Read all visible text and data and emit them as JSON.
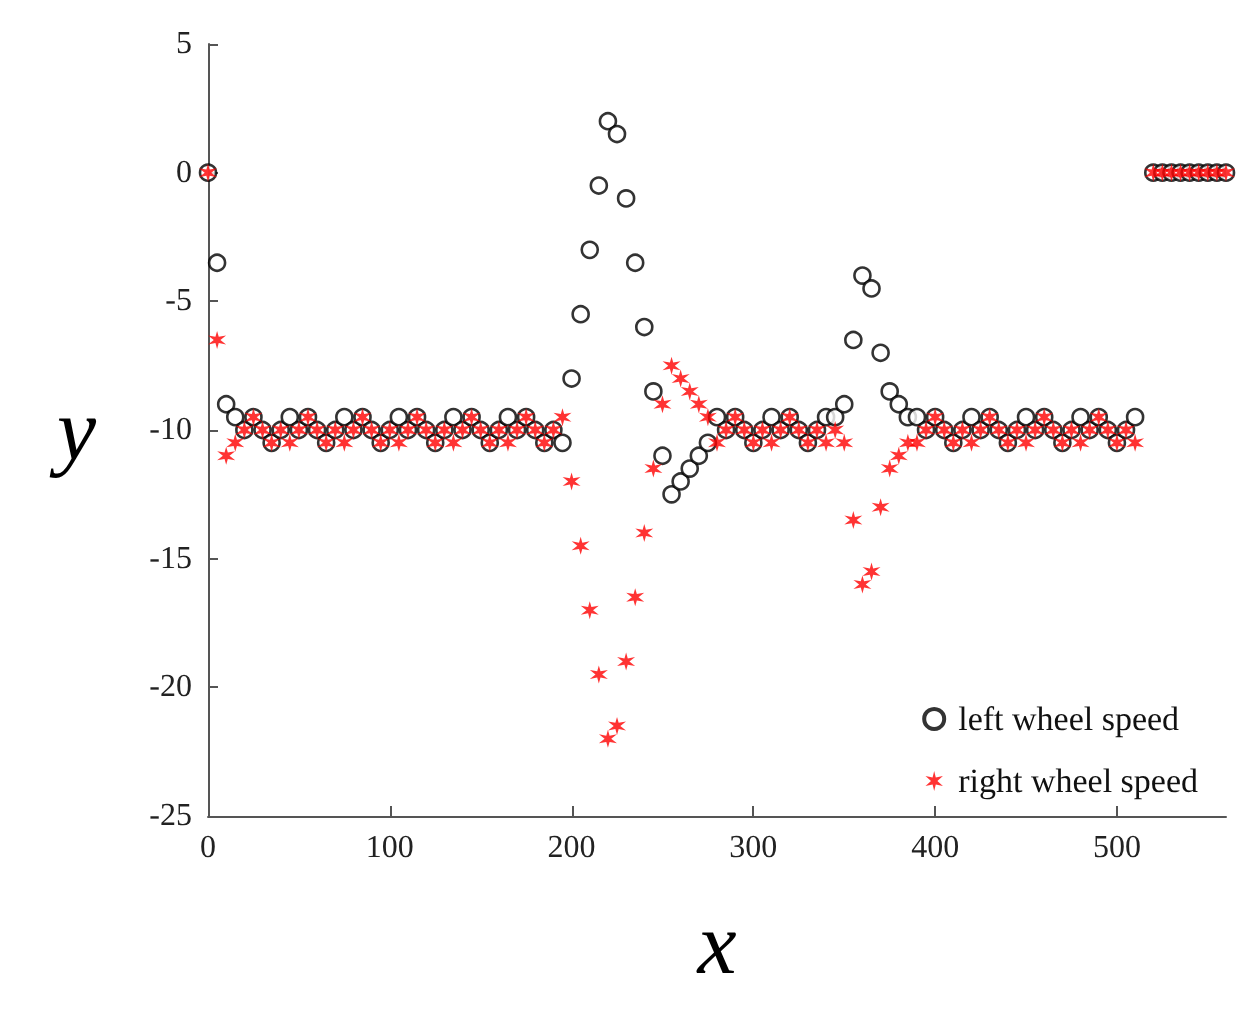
{
  "chart_data": {
    "type": "scatter",
    "xlabel": "x",
    "ylabel": "y",
    "xlim": [
      0,
      560
    ],
    "ylim": [
      -25,
      5
    ],
    "xticks": [
      0,
      100,
      200,
      300,
      400,
      500
    ],
    "yticks": [
      -25,
      -20,
      -15,
      -10,
      -5,
      0,
      5
    ],
    "grid": false,
    "legend": "bottom right",
    "x": [
      0,
      5,
      10,
      15,
      20,
      25,
      30,
      35,
      40,
      45,
      50,
      55,
      60,
      65,
      70,
      75,
      80,
      85,
      90,
      95,
      100,
      105,
      110,
      115,
      120,
      125,
      130,
      135,
      140,
      145,
      150,
      155,
      160,
      165,
      170,
      175,
      180,
      185,
      190,
      195,
      200,
      205,
      210,
      215,
      220,
      225,
      230,
      235,
      240,
      245,
      250,
      255,
      260,
      265,
      270,
      275,
      280,
      285,
      290,
      295,
      300,
      305,
      310,
      315,
      320,
      325,
      330,
      335,
      340,
      345,
      350,
      355,
      360,
      365,
      370,
      375,
      380,
      385,
      390,
      395,
      400,
      405,
      410,
      415,
      420,
      425,
      430,
      435,
      440,
      445,
      450,
      455,
      460,
      465,
      470,
      475,
      480,
      485,
      490,
      495,
      500,
      505,
      510,
      515,
      520,
      525,
      530,
      535,
      540,
      545,
      550,
      555,
      560
    ],
    "series": [
      {
        "name": "left wheel speed",
        "color": "#000000",
        "marker": "circle",
        "values": [
          0,
          -3.5,
          -9,
          -9.5,
          -10,
          -9.5,
          -10,
          -10.5,
          -10,
          -9.5,
          -10,
          -9.5,
          -10,
          -10.5,
          -10,
          -9.5,
          -10,
          -9.5,
          -10,
          -10.5,
          -10,
          -9.5,
          -10,
          -9.5,
          -10,
          -10.5,
          -10,
          -9.5,
          -10,
          -9.5,
          -10,
          -10.5,
          -10,
          -9.5,
          -10,
          -9.5,
          -10,
          -10.5,
          -10,
          -10.5,
          -8,
          -5.5,
          -3,
          -0.5,
          2,
          1.5,
          -1,
          -3.5,
          -6,
          -8.5,
          -11,
          -12.5,
          -12,
          -11.5,
          -11,
          -10.5,
          -9.5,
          -10,
          -9.5,
          -10,
          -10.5,
          -10,
          -9.5,
          -10,
          -9.5,
          -10,
          -10.5,
          -10,
          -9.5,
          -9.5,
          -9,
          -6.5,
          -4,
          -4.5,
          -7,
          -8.5,
          -9,
          -9.5,
          -9.5,
          -10,
          -9.5,
          -10,
          -10.5,
          -10,
          -9.5,
          -10,
          -9.5,
          -10,
          -10.5,
          -10,
          -9.5,
          -10,
          -9.5,
          -10,
          -10.5,
          -10,
          -9.5,
          -10,
          -9.5,
          -10,
          -10.5,
          -10,
          -9.5,
          null,
          0,
          0,
          0,
          0,
          0,
          0,
          0,
          0,
          0
        ]
      },
      {
        "name": "right wheel speed",
        "color": "#ff0000",
        "marker": "cross",
        "values": [
          0,
          -6.5,
          -11,
          -10.5,
          -10,
          -9.5,
          -10,
          -10.5,
          -10,
          -10.5,
          -10,
          -9.5,
          -10,
          -10.5,
          -10,
          -10.5,
          -10,
          -9.5,
          -10,
          -10.5,
          -10,
          -10.5,
          -10,
          -9.5,
          -10,
          -10.5,
          -10,
          -10.5,
          -10,
          -9.5,
          -10,
          -10.5,
          -10,
          -10.5,
          -10,
          -9.5,
          -10,
          -10.5,
          -10,
          -9.5,
          -12,
          -14.5,
          -17,
          -19.5,
          -22,
          -21.5,
          -19,
          -16.5,
          -14,
          -11.5,
          -9,
          -7.5,
          -8,
          -8.5,
          -9,
          -9.5,
          -10.5,
          -10,
          -9.5,
          -10,
          -10.5,
          -10,
          -10.5,
          -10,
          -9.5,
          -10,
          -10.5,
          -10,
          -10.5,
          -10,
          -10.5,
          -13.5,
          -16,
          -15.5,
          -13,
          -11.5,
          -11,
          -10.5,
          -10.5,
          -10,
          -9.5,
          -10,
          -10.5,
          -10,
          -10.5,
          -10,
          -9.5,
          -10,
          -10.5,
          -10,
          -10.5,
          -10,
          -9.5,
          -10,
          -10.5,
          -10,
          -10.5,
          -10,
          -9.5,
          -10,
          -10.5,
          -10,
          -10.5,
          null,
          0,
          0,
          0,
          0,
          0,
          0,
          0,
          0,
          0
        ]
      }
    ]
  }
}
